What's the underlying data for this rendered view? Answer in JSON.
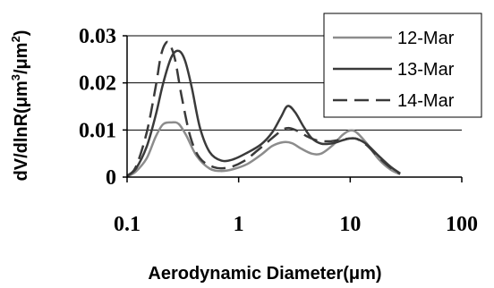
{
  "chart_data": {
    "type": "line",
    "xscale": "log",
    "xlim": [
      0.1,
      100
    ],
    "ylim": [
      0,
      0.03
    ],
    "grid": "horizontal",
    "legend_position": "top-right",
    "xlabel": "Aerodynamic Diameter(μm)",
    "ylabel": {
      "prefix": "dV/dlnR(",
      "unit1": "μm",
      "exp1": "3",
      "mid": "/",
      "unit2": "μm",
      "exp2": "2",
      "suffix": ")"
    },
    "xticks": [
      {
        "value": 0.1,
        "label": "0.1"
      },
      {
        "value": 1,
        "label": "1"
      },
      {
        "value": 10,
        "label": "10"
      },
      {
        "value": 100,
        "label": "100"
      }
    ],
    "yticks": [
      {
        "value": 0,
        "label": "0"
      },
      {
        "value": 0.01,
        "label": "0.01"
      },
      {
        "value": 0.02,
        "label": "0.02"
      },
      {
        "value": 0.03,
        "label": "0.03"
      }
    ],
    "series": [
      {
        "name": "12-Mar",
        "color": "#8c8c8c",
        "dash": "solid",
        "points": [
          [
            0.1,
            0.0001
          ],
          [
            0.12,
            0.0012
          ],
          [
            0.15,
            0.004
          ],
          [
            0.18,
            0.0085
          ],
          [
            0.21,
            0.0112
          ],
          [
            0.25,
            0.0116
          ],
          [
            0.29,
            0.0113
          ],
          [
            0.34,
            0.0088
          ],
          [
            0.42,
            0.0045
          ],
          [
            0.55,
            0.0018
          ],
          [
            0.7,
            0.0013
          ],
          [
            0.9,
            0.0017
          ],
          [
            1.2,
            0.0028
          ],
          [
            1.6,
            0.0048
          ],
          [
            2.0,
            0.0066
          ],
          [
            2.5,
            0.0074
          ],
          [
            3.0,
            0.0072
          ],
          [
            3.6,
            0.0061
          ],
          [
            4.5,
            0.005
          ],
          [
            5.5,
            0.005
          ],
          [
            7,
            0.0068
          ],
          [
            8.5,
            0.0089
          ],
          [
            10,
            0.0099
          ],
          [
            11.5,
            0.0094
          ],
          [
            14,
            0.0072
          ],
          [
            18,
            0.0038
          ],
          [
            23,
            0.0016
          ],
          [
            28,
            0.0006
          ]
        ]
      },
      {
        "name": "13-Mar",
        "color": "#3a3a3a",
        "dash": "solid",
        "points": [
          [
            0.1,
            0.0003
          ],
          [
            0.12,
            0.0018
          ],
          [
            0.15,
            0.0065
          ],
          [
            0.18,
            0.013
          ],
          [
            0.21,
            0.0198
          ],
          [
            0.25,
            0.0255
          ],
          [
            0.29,
            0.0268
          ],
          [
            0.33,
            0.0248
          ],
          [
            0.38,
            0.019
          ],
          [
            0.45,
            0.0105
          ],
          [
            0.55,
            0.0053
          ],
          [
            0.7,
            0.0035
          ],
          [
            0.9,
            0.0038
          ],
          [
            1.2,
            0.0052
          ],
          [
            1.6,
            0.007
          ],
          [
            2.0,
            0.0095
          ],
          [
            2.4,
            0.0128
          ],
          [
            2.75,
            0.0151
          ],
          [
            3.2,
            0.0138
          ],
          [
            3.8,
            0.0108
          ],
          [
            4.5,
            0.0083
          ],
          [
            5.5,
            0.0071
          ],
          [
            7,
            0.0072
          ],
          [
            8.5,
            0.0078
          ],
          [
            10,
            0.0082
          ],
          [
            11.5,
            0.0081
          ],
          [
            14,
            0.007
          ],
          [
            18,
            0.0045
          ],
          [
            23,
            0.0022
          ],
          [
            28,
            0.0008
          ]
        ]
      },
      {
        "name": "14-Mar",
        "color": "#3a3a3a",
        "dash": "dashed",
        "points": [
          [
            0.1,
            0.0002
          ],
          [
            0.12,
            0.0022
          ],
          [
            0.15,
            0.0095
          ],
          [
            0.18,
            0.019
          ],
          [
            0.2,
            0.0255
          ],
          [
            0.22,
            0.0283
          ],
          [
            0.24,
            0.0283
          ],
          [
            0.27,
            0.0248
          ],
          [
            0.31,
            0.0168
          ],
          [
            0.37,
            0.0085
          ],
          [
            0.45,
            0.004
          ],
          [
            0.6,
            0.0021
          ],
          [
            0.8,
            0.002
          ],
          [
            1.1,
            0.0033
          ],
          [
            1.5,
            0.0058
          ],
          [
            2.0,
            0.0083
          ],
          [
            2.5,
            0.0101
          ],
          [
            2.85,
            0.0104
          ],
          [
            3.3,
            0.0099
          ],
          [
            4.0,
            0.0088
          ],
          [
            5,
            0.0078
          ],
          [
            6.5,
            0.0076
          ],
          [
            8,
            0.0079
          ],
          [
            10,
            0.0082
          ],
          [
            11.5,
            0.0081
          ],
          [
            14,
            0.0068
          ],
          [
            18,
            0.0042
          ],
          [
            23,
            0.002
          ],
          [
            28,
            0.0007
          ]
        ]
      }
    ]
  }
}
